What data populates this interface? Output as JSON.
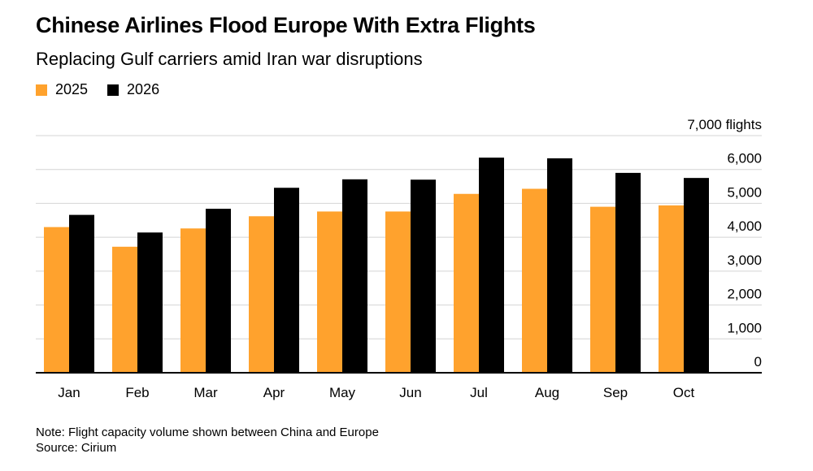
{
  "title": "Chinese Airlines Flood Europe With Extra Flights",
  "subtitle": "Replacing Gulf carriers amid Iran war disruptions",
  "note": "Note: Flight capacity volume shown between China and Europe",
  "source": "Source: Cirium",
  "colors": {
    "2025": "#ffa22d",
    "2026": "#000000",
    "grid": "#d4d4d4",
    "axis": "#000000"
  },
  "chart_data": {
    "type": "bar",
    "categories": [
      "Jan",
      "Feb",
      "Mar",
      "Apr",
      "May",
      "Jun",
      "Jul",
      "Aug",
      "Sep",
      "Oct"
    ],
    "series": [
      {
        "name": "2025",
        "values": [
          4300,
          3720,
          4260,
          4620,
          4760,
          4760,
          5280,
          5430,
          4900,
          4940
        ]
      },
      {
        "name": "2026",
        "values": [
          4660,
          4140,
          4840,
          5460,
          5710,
          5700,
          6350,
          6330,
          5900,
          5750
        ]
      }
    ],
    "yticks": [
      "0",
      "1,000",
      "2,000",
      "3,000",
      "4,000",
      "5,000",
      "6,000",
      "7,000 flights"
    ],
    "ylim": [
      0,
      7000
    ],
    "grid": true,
    "legend_position": "top-left"
  }
}
